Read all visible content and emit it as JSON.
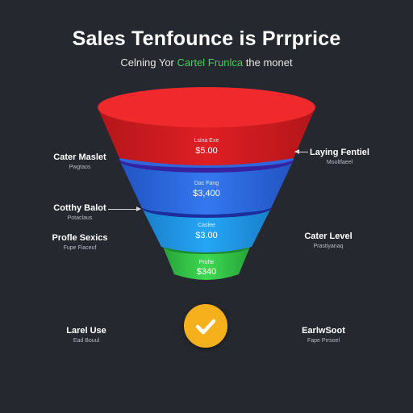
{
  "header": {
    "title": "Sales Tenfounce is Prrprice",
    "subtitle_start": "Celning Yor ",
    "subtitle_accent": "Cartel Frunlca",
    "subtitle_end": " the monet"
  },
  "funnel": {
    "stages": [
      {
        "label": "Lsina Exe",
        "value": "$5.00",
        "color": "#e8262a"
      },
      {
        "label": "Dac Fang",
        "value": "$3,400",
        "color": "#2f6ee8"
      },
      {
        "label": "Caslee",
        "value": "$3.00",
        "color": "#1f9ff0"
      },
      {
        "label": "Prufte",
        "value": "$340",
        "color": "#37d24a"
      }
    ]
  },
  "left_labels": [
    {
      "title": "Cater Maslet",
      "sub": "Pwgtaos"
    },
    {
      "title": "Cotthy Balot",
      "sub": "Potaclaus"
    },
    {
      "title": "Profle Sexics",
      "sub": "Fupe Fiaceuf"
    },
    {
      "title": "Larel Use",
      "sub": "Ead Bouul"
    }
  ],
  "right_labels": [
    {
      "title": "Laying Fentiel",
      "sub": "Mooltfaeel"
    },
    {
      "title": "Cater Level",
      "sub": "Prastiyanaq"
    },
    {
      "title": "EarlwSoot",
      "sub": "Fape Prrsoel"
    }
  ],
  "colors": {
    "background": "#25282f",
    "stage_red_dark": "#b7161b",
    "stage_red_top": "#f02a2c",
    "stage_blue_dark": "#2255c4",
    "stage_cyan_dark": "#1880c8",
    "stage_green_dark": "#27a83a",
    "badge": "#f6b01b"
  },
  "icons": {
    "check": "check-icon"
  }
}
